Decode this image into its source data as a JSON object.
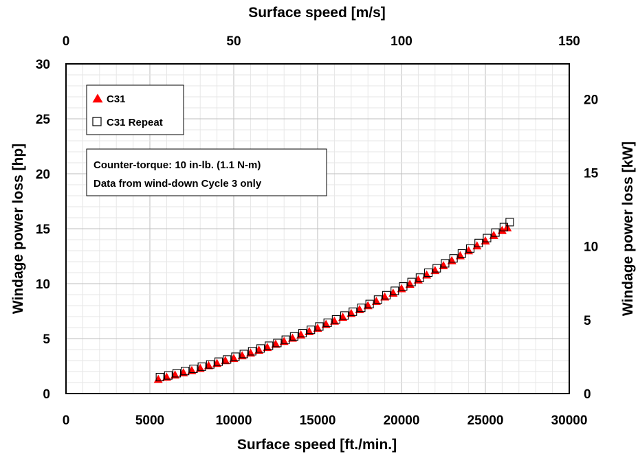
{
  "chart_data": {
    "type": "scatter",
    "title": "",
    "xlabel": "Surface speed [ft./min.]",
    "ylabel": "Windage power loss [hp]",
    "x2label": "Surface speed [m/s]",
    "y2label": "Windage power loss [kW]",
    "xlim": [
      0,
      30000
    ],
    "ylim": [
      0,
      30
    ],
    "x2lim": [
      0,
      150
    ],
    "y2lim": [
      0,
      22.4
    ],
    "x_ticks": [
      "0",
      "5000",
      "10000",
      "15000",
      "20000",
      "25000",
      "30000"
    ],
    "y_ticks": [
      "0",
      "5",
      "10",
      "15",
      "20",
      "25",
      "30"
    ],
    "x2_ticks": [
      "0",
      "50",
      "100",
      "150"
    ],
    "y2_ticks": [
      "0",
      "5",
      "10",
      "15",
      "20"
    ],
    "grid": true,
    "legend_position": "top-left",
    "annotation": [
      "Counter-torque: 10 in-lb. (1.1 N-m)",
      "Data from wind-down Cycle 3 only"
    ],
    "series": [
      {
        "name": "C31",
        "marker": "triangle",
        "color": "#ff0000",
        "x": [
          5500,
          6000,
          6500,
          7000,
          7500,
          8000,
          8500,
          9000,
          9500,
          10000,
          10500,
          11000,
          11500,
          12000,
          12500,
          13000,
          13500,
          14000,
          14500,
          15000,
          15500,
          16000,
          16500,
          17000,
          17500,
          18000,
          18500,
          19000,
          19500,
          20000,
          20500,
          21000,
          21500,
          22000,
          22500,
          23000,
          23500,
          24000,
          24500,
          25000,
          25500,
          26000,
          26300
        ],
        "y": [
          1.3,
          1.5,
          1.7,
          1.9,
          2.1,
          2.3,
          2.55,
          2.75,
          3.0,
          3.2,
          3.45,
          3.7,
          3.95,
          4.2,
          4.5,
          4.75,
          5.05,
          5.35,
          5.65,
          5.95,
          6.3,
          6.6,
          6.95,
          7.3,
          7.65,
          8.0,
          8.4,
          8.8,
          9.15,
          9.55,
          9.95,
          10.35,
          10.8,
          11.2,
          11.65,
          12.1,
          12.55,
          13.0,
          13.45,
          13.9,
          14.4,
          14.85,
          15.1
        ]
      },
      {
        "name": "C31 Repeat",
        "marker": "square",
        "color": "#000000",
        "x": [
          5600,
          6100,
          6600,
          7100,
          7600,
          8100,
          8600,
          9100,
          9600,
          10100,
          10600,
          11100,
          11600,
          12100,
          12600,
          13100,
          13600,
          14100,
          14600,
          15100,
          15600,
          16100,
          16600,
          17100,
          17600,
          18100,
          18600,
          19100,
          19600,
          20100,
          20600,
          21100,
          21600,
          22100,
          22600,
          23100,
          23600,
          24100,
          24600,
          25100,
          25600,
          26100,
          26450
        ],
        "y": [
          1.5,
          1.65,
          1.85,
          2.05,
          2.25,
          2.45,
          2.65,
          2.9,
          3.1,
          3.35,
          3.6,
          3.85,
          4.1,
          4.35,
          4.6,
          4.9,
          5.2,
          5.5,
          5.8,
          6.1,
          6.45,
          6.75,
          7.1,
          7.45,
          7.8,
          8.15,
          8.55,
          8.95,
          9.35,
          9.75,
          10.15,
          10.55,
          11.0,
          11.4,
          11.85,
          12.3,
          12.75,
          13.2,
          13.7,
          14.15,
          14.65,
          15.15,
          15.6
        ]
      }
    ]
  }
}
